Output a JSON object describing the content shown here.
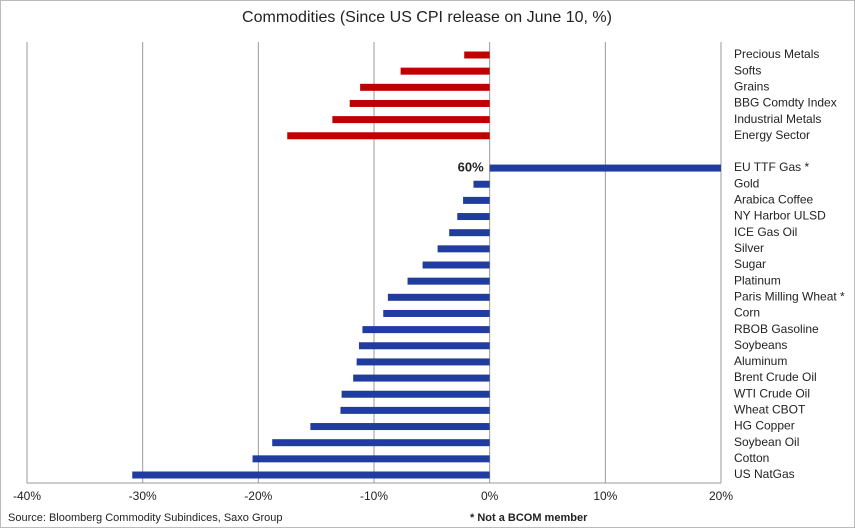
{
  "chart_data": {
    "type": "barh",
    "title": "Commodities (Since US CPI release on June 10, %)",
    "source": "Source: Bloomberg Commodity Subindices, Saxo Group",
    "footnote": "* Not a BCOM member",
    "categories": [
      "Precious Metals",
      "Softs",
      "Grains",
      "BBG Comdty Index",
      "Industrial Metals",
      "Energy Sector",
      null,
      "EU TTF Gas *",
      "Gold",
      "Arabica Coffee",
      "NY Harbor ULSD",
      "ICE Gas Oil",
      "Silver",
      "Sugar",
      "Platinum",
      "Paris Milling Wheat *",
      "Corn",
      "RBOB Gasoline",
      "Soybeans",
      "Aluminum",
      "Brent Crude Oil",
      "WTI Crude Oil",
      "Wheat CBOT",
      "HG Copper",
      "Soybean Oil",
      "Cotton",
      "US NatGas"
    ],
    "values": [
      -2.2,
      -7.7,
      -11.2,
      -12.1,
      -13.6,
      -17.5,
      null,
      60,
      -1.4,
      -2.3,
      -2.8,
      -3.5,
      -4.5,
      -5.8,
      -7.1,
      -8.8,
      -9.2,
      -11.0,
      -11.3,
      -11.5,
      -11.8,
      -12.8,
      -12.9,
      -15.5,
      -18.8,
      -20.5,
      -30.9
    ],
    "value_labels": [
      null,
      null,
      null,
      null,
      null,
      null,
      null,
      "60%",
      null,
      null,
      null,
      null,
      null,
      null,
      null,
      null,
      null,
      null,
      null,
      null,
      null,
      null,
      null,
      null,
      null,
      null,
      null
    ],
    "colors": [
      "#c00000",
      "#c00000",
      "#c00000",
      "#c00000",
      "#c00000",
      "#c00000",
      null,
      "#1f3c9e",
      "#1f3c9e",
      "#1f3c9e",
      "#1f3c9e",
      "#1f3c9e",
      "#1f3c9e",
      "#1f3c9e",
      "#1f3c9e",
      "#1f3c9e",
      "#1f3c9e",
      "#1f3c9e",
      "#1f3c9e",
      "#1f3c9e",
      "#1f3c9e",
      "#1f3c9e",
      "#1f3c9e",
      "#1f3c9e",
      "#1f3c9e",
      "#1f3c9e",
      "#1f3c9e"
    ],
    "xlim": [
      -40,
      20
    ],
    "xticks": [
      {
        "value": -40,
        "label": "-40%"
      },
      {
        "value": -30,
        "label": "-30%"
      },
      {
        "value": -20,
        "label": "-20%"
      },
      {
        "value": -10,
        "label": "-10%"
      },
      {
        "value": 0,
        "label": "0%"
      },
      {
        "value": 10,
        "label": "10%"
      },
      {
        "value": 20,
        "label": "20%"
      }
    ],
    "grid": true
  }
}
